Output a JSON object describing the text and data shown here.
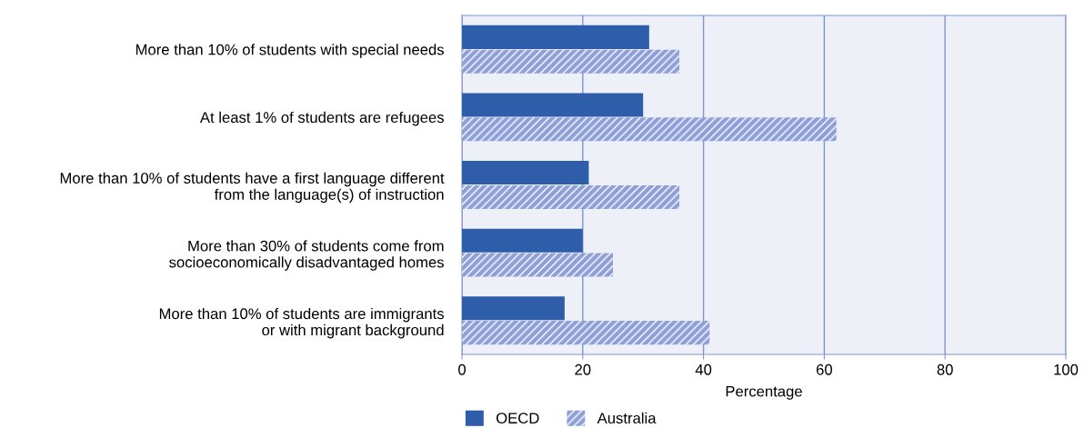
{
  "chart_data": {
    "type": "bar",
    "orientation": "horizontal",
    "xlabel": "Percentage",
    "categories": [
      "More than 10% of students with special needs",
      "At least 1% of students are refugees",
      "More than 10% of students have a first language different\nfrom the language(s) of instruction",
      "More than 30% of students come from\nsocioeconomically disadvantaged homes",
      "More than 10% of students are immigrants\nor with migrant background"
    ],
    "series": [
      {
        "name": "OECD",
        "color": "#2e5da9",
        "values": [
          31,
          30,
          21,
          20,
          17
        ]
      },
      {
        "name": "Australia",
        "color": "#8e9fd8",
        "values": [
          36,
          62,
          36,
          25,
          41
        ]
      }
    ],
    "xlim": [
      0,
      100
    ],
    "xticks": [
      0,
      20,
      40,
      60,
      80,
      100
    ],
    "grid": "x",
    "legend": "bottom left"
  }
}
